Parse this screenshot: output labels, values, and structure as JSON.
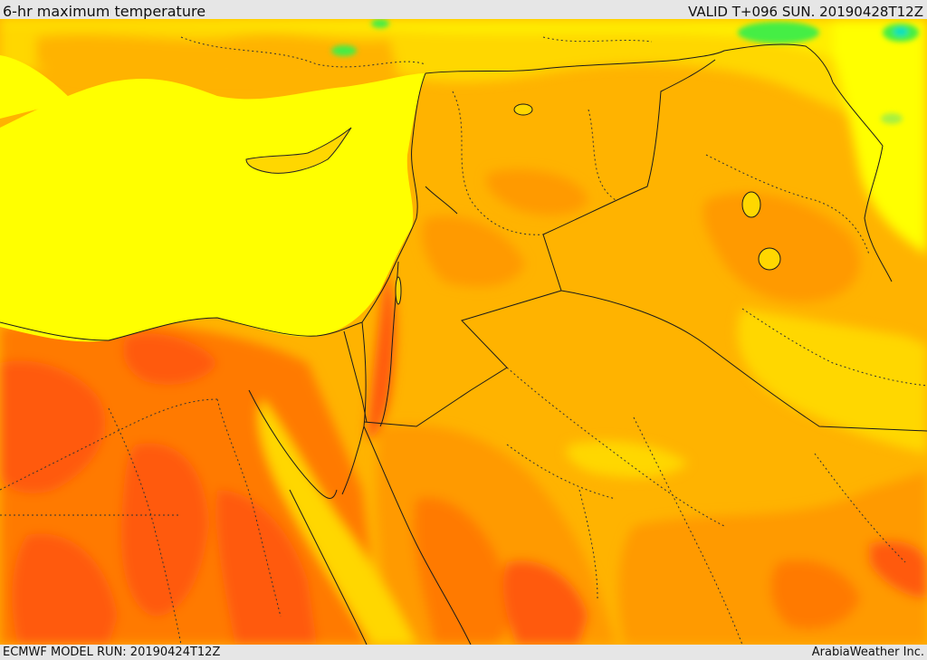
{
  "header": {
    "title": "6-hr maximum temperature",
    "valid": "VALID T+096 SUN. 20190428T12Z"
  },
  "footer": {
    "model_run": "ECMWF MODEL RUN: 20190424T12Z",
    "credit": "ArabiaWeather Inc."
  },
  "palette": {
    "sea_yellow": "#ffff00",
    "yellow_orange": "#ffd700",
    "light_orange": "#ffb300",
    "orange": "#ff9a00",
    "dark_orange": "#ff7a00",
    "red_orange": "#ff5a10",
    "green": "#44ee44",
    "cyan": "#00e0c0"
  }
}
